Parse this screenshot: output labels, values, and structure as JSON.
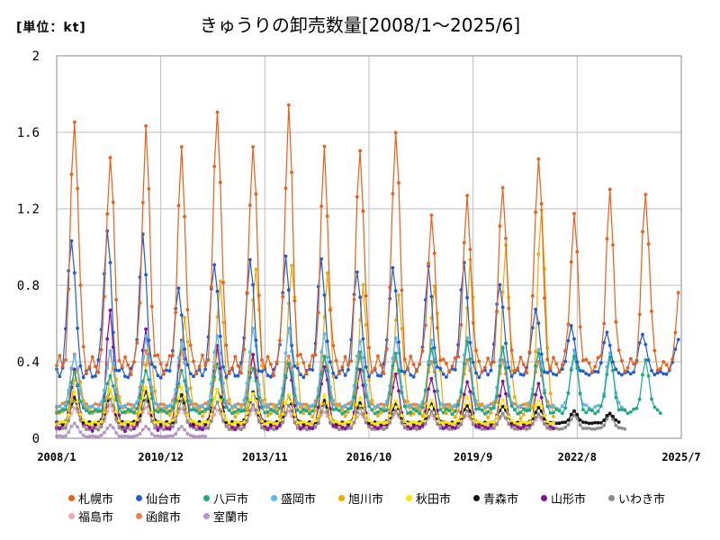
{
  "unit_label": "[単位：kt]",
  "chart_data": {
    "type": "line",
    "title": "きゅうりの卸売数量[2008/1～2025/6]",
    "xlabel": "",
    "ylabel": "",
    "ylim": [
      0,
      2
    ],
    "yticks": [
      "0",
      "0.4",
      "0.8",
      "1.2",
      "1.6",
      "2"
    ],
    "xtick_labels": [
      "2008/1",
      "2010/12",
      "2013/11",
      "2016/10",
      "2019/9",
      "2022/8",
      "2025/7"
    ],
    "grid": true,
    "legend_position": "bottom",
    "series": [
      {
        "name": "札幌市",
        "color": "#e8601c",
        "end": "2025/6",
        "base": 0.38,
        "peaks": [
          1.69,
          1.5,
          1.6,
          1.49,
          1.74,
          1.56,
          1.71,
          1.49,
          1.53,
          1.64,
          1.15,
          1.24,
          1.33,
          1.5,
          1.16,
          1.27,
          1.29,
          0.91
        ],
        "peak_month": 7
      },
      {
        "name": "仙台市",
        "color": "#1f5bd6",
        "end": "2025/6",
        "base": 0.34,
        "peaks": [
          1.06,
          1.09,
          1.04,
          0.78,
          0.93,
          0.94,
          0.93,
          0.93,
          0.89,
          0.9,
          0.88,
          0.91,
          0.82,
          0.68,
          0.58,
          0.55,
          0.55,
          0.52
        ],
        "peak_month": 6
      },
      {
        "name": "八戸市",
        "color": "#20a884",
        "end": "2024/12",
        "base": 0.14,
        "peaks": [
          0.34,
          0.33,
          0.36,
          0.35,
          0.38,
          0.37,
          0.4,
          0.42,
          0.44,
          0.45,
          0.48,
          0.5,
          0.46,
          0.45,
          0.44,
          0.42,
          0.4
        ],
        "peak_month": 7
      },
      {
        "name": "盛岡市",
        "color": "#5bb8ec",
        "end": "2023/12",
        "base": 0.16,
        "peaks": [
          0.44,
          0.46,
          0.52,
          0.5,
          0.55,
          0.58,
          0.56,
          0.54,
          0.52,
          0.53,
          0.5,
          0.52,
          0.49,
          0.47,
          0.45,
          0.44
        ],
        "peak_month": 7
      },
      {
        "name": "旭川市",
        "color": "#f2a900",
        "end": "2021/12",
        "base": 0.14,
        "peaks": [
          0.36,
          0.38,
          0.48,
          0.62,
          0.8,
          0.9,
          0.93,
          0.85,
          0.78,
          0.76,
          0.82,
          0.92,
          0.98,
          1.21
        ],
        "peak_month": 8
      },
      {
        "name": "秋田市",
        "color": "#ffe600",
        "end": "2021/12",
        "base": 0.08,
        "peaks": [
          0.24,
          0.26,
          0.27,
          0.26,
          0.25,
          0.24,
          0.23,
          0.22,
          0.21,
          0.2,
          0.2,
          0.21,
          0.2,
          0.2
        ],
        "peak_month": 7
      },
      {
        "name": "青森市",
        "color": "#111111",
        "end": "2023/10",
        "base": 0.08,
        "peaks": [
          0.22,
          0.25,
          0.24,
          0.23,
          0.26,
          0.24,
          0.22,
          0.2,
          0.19,
          0.18,
          0.18,
          0.17,
          0.17,
          0.16,
          0.14,
          0.13
        ],
        "peak_month": 7
      },
      {
        "name": "山形市",
        "color": "#8a0f9e",
        "end": "2021/12",
        "base": 0.06,
        "peaks": [
          0.35,
          0.66,
          0.59,
          0.52,
          0.47,
          0.43,
          0.4,
          0.38,
          0.35,
          0.33,
          0.32,
          0.3,
          0.29,
          0.28
        ],
        "peak_month": 7
      },
      {
        "name": "いわき市",
        "color": "#8c8c8c",
        "end": "2023/12",
        "base": 0.05,
        "peaks": [
          0.2,
          0.21,
          0.2,
          0.19,
          0.19,
          0.18,
          0.17,
          0.17,
          0.16,
          0.15,
          0.14,
          0.14,
          0.13,
          0.13,
          0.12,
          0.12
        ],
        "peak_month": 7
      },
      {
        "name": "福島市",
        "color": "#f4a6b2",
        "end": "2021/12",
        "base": 0.06,
        "peaks": [
          0.16,
          0.17,
          0.16,
          0.16,
          0.15,
          0.15,
          0.14,
          0.14,
          0.13,
          0.13,
          0.12,
          0.12,
          0.12,
          0.11
        ],
        "peak_month": 7
      },
      {
        "name": "函館市",
        "color": "#ef8045",
        "end": "2021/12",
        "base": 0.17,
        "peaks": [
          0.43,
          0.45,
          0.47,
          0.46,
          0.45,
          0.44,
          0.44,
          0.43,
          0.42,
          0.42,
          0.41,
          0.41,
          0.4,
          0.4
        ],
        "peak_month": 7
      },
      {
        "name": "室蘭市",
        "color": "#b893c9",
        "end": "2012/3",
        "base": 0.01,
        "peaks": [
          0.08,
          0.07,
          0.06,
          0.06,
          0.05
        ],
        "peak_month": 7
      }
    ]
  }
}
